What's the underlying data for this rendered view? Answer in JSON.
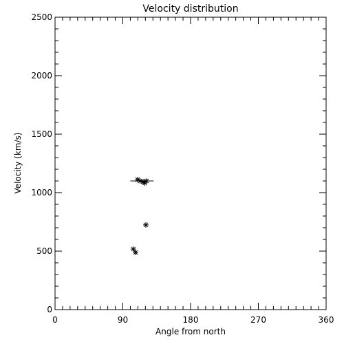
{
  "chart_data": {
    "type": "scatter",
    "title": "Velocity distribution",
    "x_label": "Angle from north",
    "y_label": "Velocity (km/s)",
    "x": [
      109.6,
      113,
      117,
      121.5,
      119,
      120.6,
      104,
      107
    ],
    "values": [
      1112,
      1100,
      1094,
      1100,
      1082,
      724,
      518,
      488
    ],
    "color": "#000000",
    "mean_line": {
      "y": 1100,
      "x": [
        100,
        131
      ]
    },
    "xlim": [
      0,
      360
    ],
    "xticks": [
      0,
      90,
      180,
      270,
      360
    ],
    "x_minor_step": 10,
    "ylim": [
      0,
      2500
    ],
    "yticks": [
      0,
      500,
      1000,
      1500,
      2000,
      2500
    ],
    "y_minor_step": 100
  }
}
